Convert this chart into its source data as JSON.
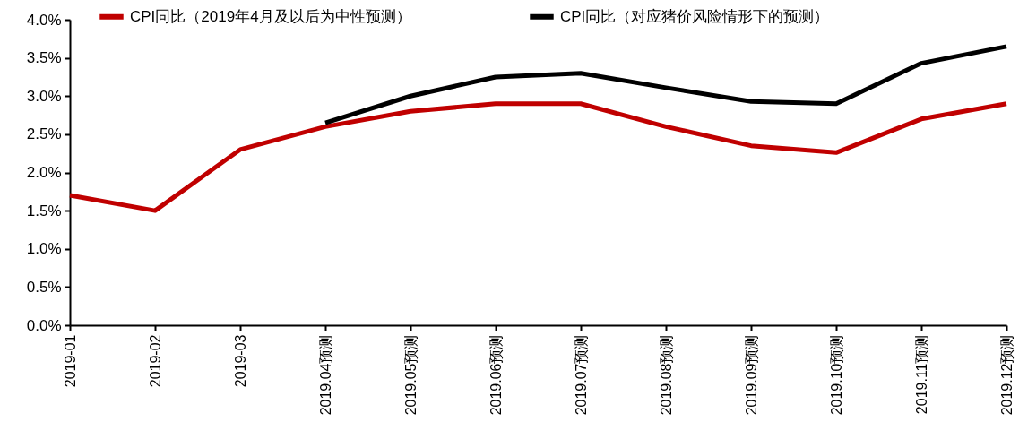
{
  "chart_data": {
    "type": "line",
    "categories": [
      "2019-01",
      "2019-02",
      "2019-03",
      "2019.04预测",
      "2019.05预测",
      "2019.06预测",
      "2019.07预测",
      "2019.08预测",
      "2019.09预测",
      "2019.10预测",
      "2019.11预测",
      "2019.12预测"
    ],
    "series": [
      {
        "name": "CPI同比（2019年4月及以后为中性预测）",
        "color": "#c00000",
        "values": [
          1.7,
          1.5,
          2.3,
          2.6,
          2.8,
          2.9,
          2.9,
          2.6,
          2.35,
          2.26,
          2.7,
          2.9
        ]
      },
      {
        "name": "CPI同比（对应猪价风险情形下的预测）",
        "color": "#000000",
        "values": [
          null,
          null,
          null,
          2.65,
          3.0,
          3.25,
          3.3,
          3.11,
          2.93,
          2.9,
          3.43,
          3.65
        ]
      }
    ],
    "ylim": [
      0,
      4
    ],
    "yticks": [
      {
        "value": 0,
        "label": "0.0%"
      },
      {
        "value": 0.5,
        "label": "0.5%"
      },
      {
        "value": 1,
        "label": "1.0%"
      },
      {
        "value": 1.5,
        "label": "1.5%"
      },
      {
        "value": 2,
        "label": "2.0%"
      },
      {
        "value": 2.5,
        "label": "2.5%"
      },
      {
        "value": 3,
        "label": "3.0%"
      },
      {
        "value": 3.5,
        "label": "3.5%"
      },
      {
        "value": 4,
        "label": "4.0%"
      }
    ],
    "grid": false,
    "legend": "top",
    "marker": "none",
    "line_style": "solid"
  }
}
